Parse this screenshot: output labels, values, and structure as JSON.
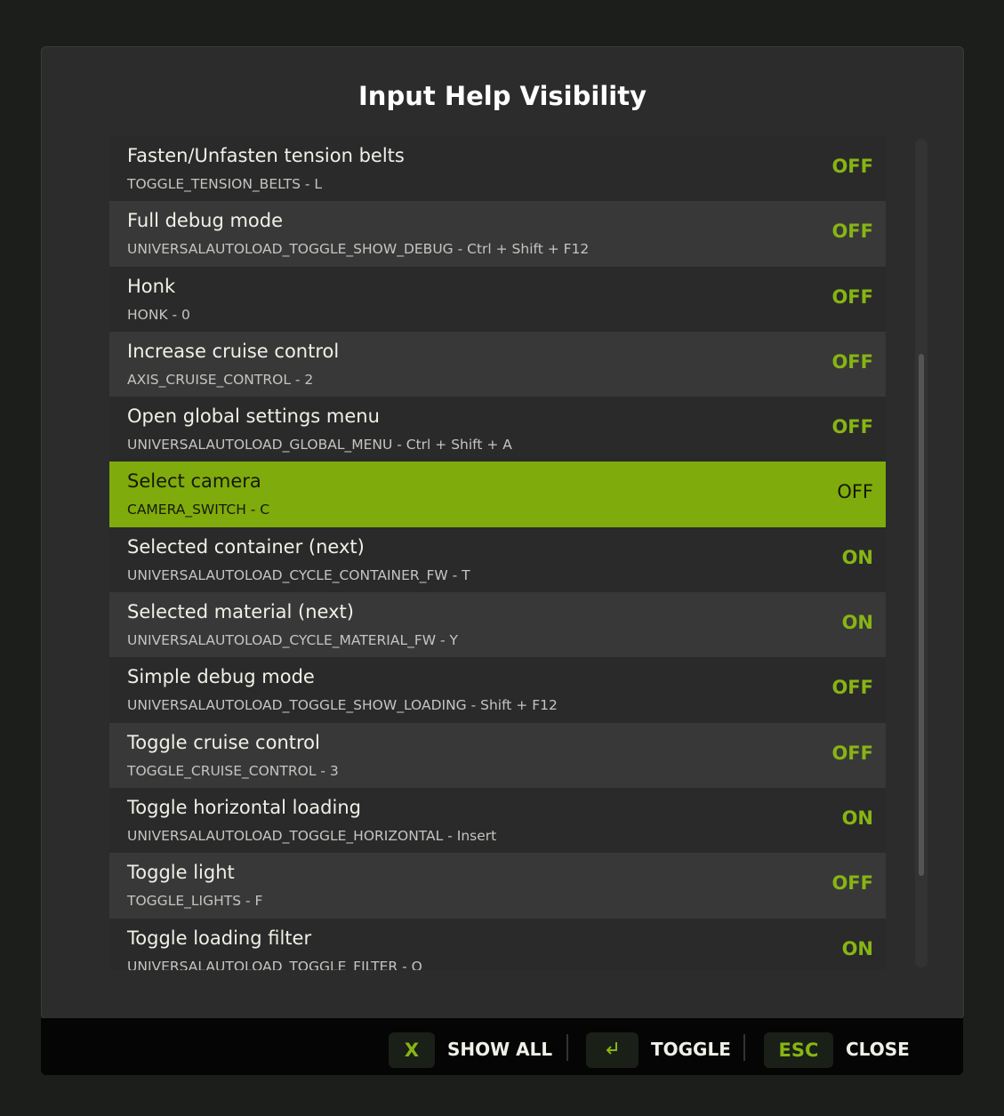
{
  "title": "Input Help Visibility",
  "rows": [
    {
      "name": "Fasten/Unfasten tension belts",
      "key": "TOGGLE_TENSION_BELTS - L",
      "state": "OFF"
    },
    {
      "name": "Full debug mode",
      "key": "UNIVERSALAUTOLOAD_TOGGLE_SHOW_DEBUG - Ctrl + Shift + F12",
      "state": "OFF"
    },
    {
      "name": "Honk",
      "key": "HONK - 0",
      "state": "OFF"
    },
    {
      "name": "Increase cruise control",
      "key": "AXIS_CRUISE_CONTROL - 2",
      "state": "OFF"
    },
    {
      "name": "Open global settings menu",
      "key": "UNIVERSALAUTOLOAD_GLOBAL_MENU - Ctrl + Shift + A",
      "state": "OFF"
    },
    {
      "name": "Select camera",
      "key": "CAMERA_SWITCH - C",
      "state": "OFF",
      "selected": true
    },
    {
      "name": "Selected container (next)",
      "key": "UNIVERSALAUTOLOAD_CYCLE_CONTAINER_FW - T",
      "state": "ON"
    },
    {
      "name": "Selected material (next)",
      "key": "UNIVERSALAUTOLOAD_CYCLE_MATERIAL_FW - Y",
      "state": "ON"
    },
    {
      "name": "Simple debug mode",
      "key": "UNIVERSALAUTOLOAD_TOGGLE_SHOW_LOADING - Shift + F12",
      "state": "OFF"
    },
    {
      "name": "Toggle cruise control",
      "key": "TOGGLE_CRUISE_CONTROL - 3",
      "state": "OFF"
    },
    {
      "name": "Toggle horizontal loading",
      "key": "UNIVERSALAUTOLOAD_TOGGLE_HORIZONTAL - Insert",
      "state": "ON"
    },
    {
      "name": "Toggle light",
      "key": "TOGGLE_LIGHTS - F",
      "state": "OFF"
    },
    {
      "name": "Toggle loading filter",
      "key": "UNIVERSALAUTOLOAD_TOGGLE_FILTER - O",
      "state": "ON"
    }
  ],
  "scroll": {
    "position_fraction": 0.26,
    "visible_fraction": 0.63
  },
  "footer": {
    "show_all_key": "X",
    "show_all": "SHOW ALL",
    "toggle_key_icon": "enter-icon",
    "toggle": "TOGGLE",
    "close_key": "ESC",
    "close": "CLOSE"
  },
  "colors": {
    "accent": "#87b514",
    "selected_row": "#80ab0c"
  }
}
